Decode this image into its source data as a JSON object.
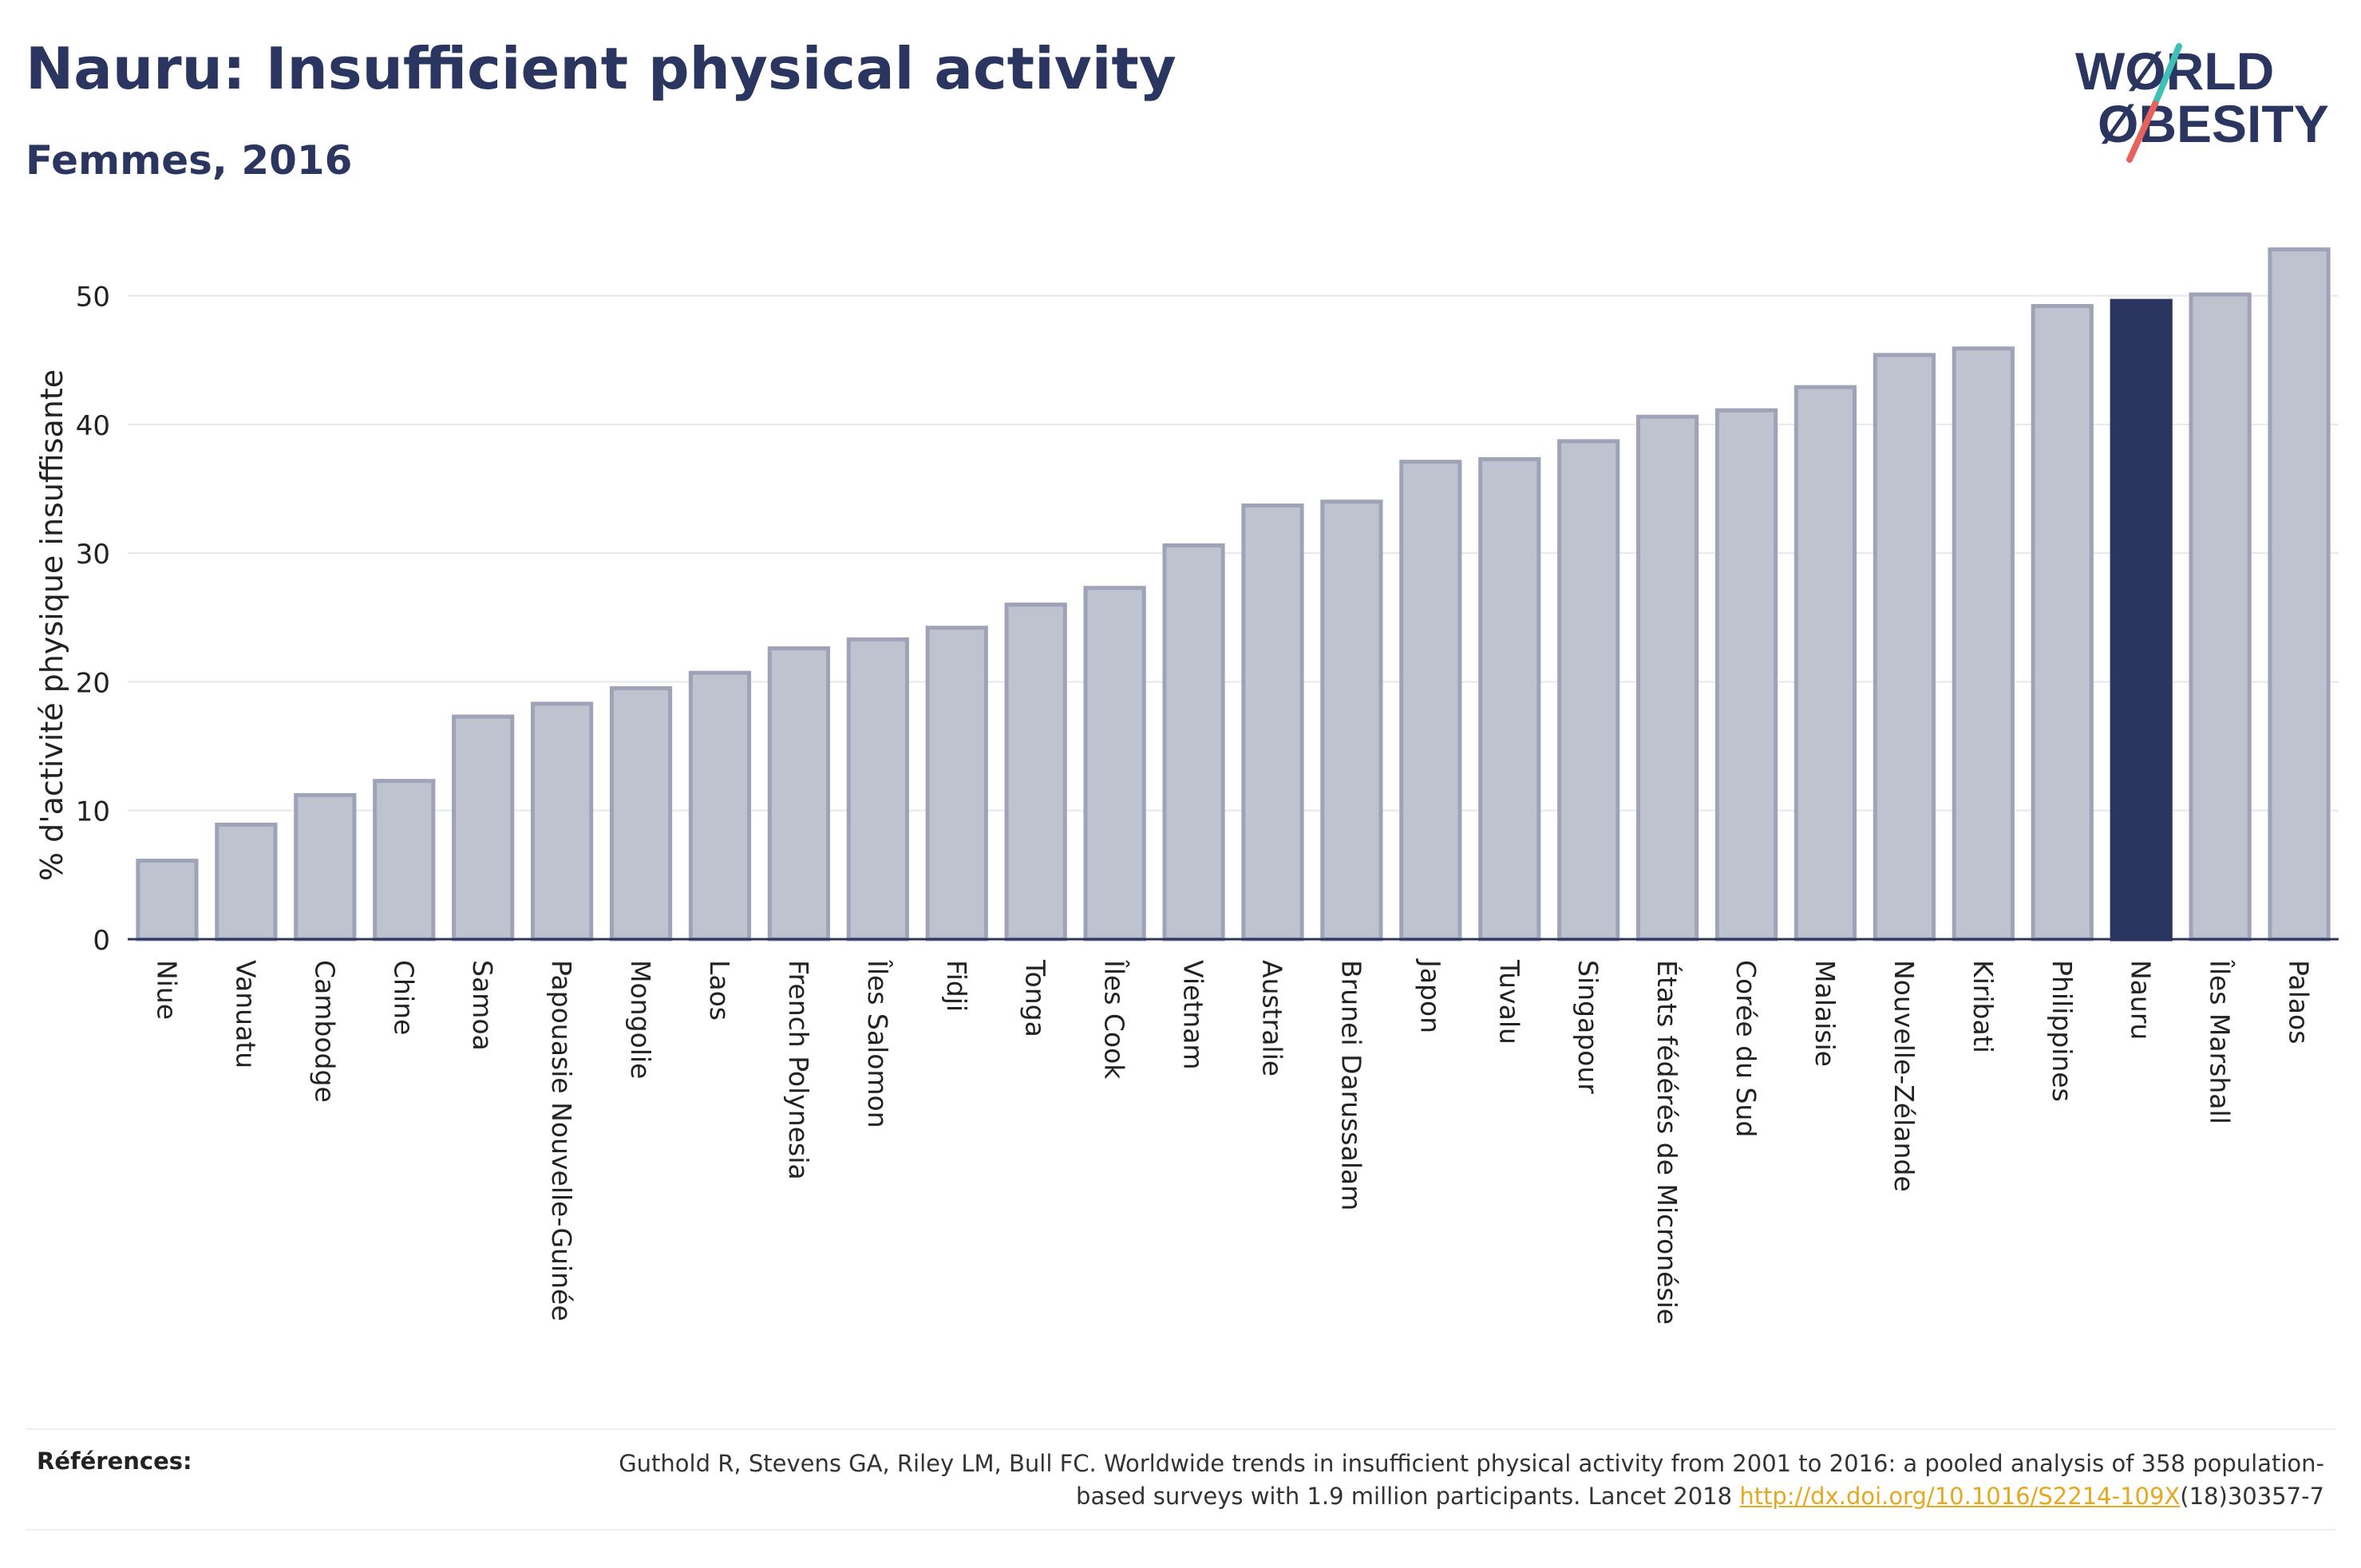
{
  "header": {
    "title": "Nauru: Insufficient physical activity",
    "subtitle": "Femmes, 2016"
  },
  "logo": {
    "line1": "WØRLD",
    "line2": "ØBESITY",
    "text_color": "#2a3560",
    "slash_top_color": "#3fbfb8",
    "slash_bottom_color": "#e8615a"
  },
  "colors": {
    "bar_fill": "#bfc3d0",
    "bar_stroke": "#9ea3b8",
    "highlight": "#2a3560",
    "text": "#2a3560"
  },
  "chart_data": {
    "type": "bar",
    "ylabel": "% d'activité physique insuffisante",
    "ylim": [
      0,
      55
    ],
    "yticks": [
      0,
      10,
      20,
      30,
      40,
      50
    ],
    "grid": true,
    "highlight": "Nauru",
    "categories": [
      "Niue",
      "Vanuatu",
      "Cambodge",
      "Chine",
      "Samoa",
      "Papouasie Nouvelle-Guinée",
      "Mongolie",
      "Laos",
      "French Polynesia",
      "Îles Salomon",
      "Fidji",
      "Tonga",
      "Îles Cook",
      "Vietnam",
      "Australie",
      "Brunei Darussalam",
      "Japon",
      "Tuvalu",
      "Singapour",
      "États fédérés de Micronésie",
      "Corée du Sud",
      "Malaisie",
      "Nouvelle-Zélande",
      "Kiribati",
      "Philippines",
      "Nauru",
      "Îles Marshall",
      "Palaos"
    ],
    "values": [
      6.1,
      8.9,
      11.2,
      12.3,
      17.3,
      18.3,
      19.5,
      20.7,
      22.6,
      23.3,
      24.2,
      26.0,
      27.3,
      30.6,
      33.7,
      34.0,
      37.1,
      37.3,
      38.7,
      40.6,
      41.1,
      42.9,
      45.4,
      45.9,
      49.2,
      49.6,
      50.1,
      53.6
    ]
  },
  "references": {
    "label": "Références:",
    "text_before": "Guthold R, Stevens GA, Riley LM, Bull FC. Worldwide trends in insufficient physical activity from 2001 to 2016: a pooled analysis of 358 population-based surveys with 1.9 million participants. Lancet 2018 ",
    "link": "http://dx.doi.org/10.1016/S2214-109X",
    "text_after": "(18)30357-7"
  }
}
